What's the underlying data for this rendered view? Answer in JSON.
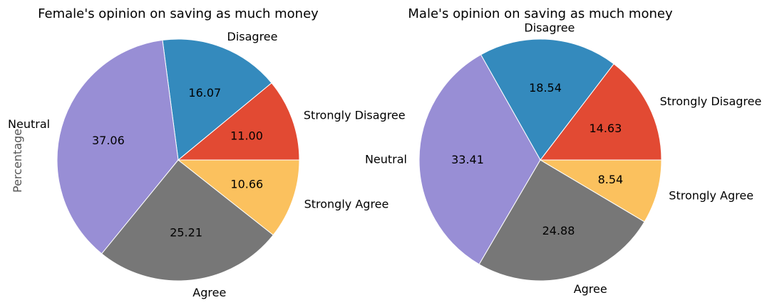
{
  "chart_data": [
    {
      "type": "pie",
      "title": "Female's opinion on saving as much money",
      "ylabel": "Percentage",
      "slices": [
        {
          "label": "Strongly Disagree",
          "value": 11.0,
          "display": "11.00",
          "color": "#e24a33"
        },
        {
          "label": "Disagree",
          "value": 16.07,
          "display": "16.07",
          "color": "#348abd"
        },
        {
          "label": "Neutral",
          "value": 37.06,
          "display": "37.06",
          "color": "#988ed5"
        },
        {
          "label": "Agree",
          "value": 25.21,
          "display": "25.21",
          "color": "#777777"
        },
        {
          "label": "Strongly Agree",
          "value": 10.66,
          "display": "10.66",
          "color": "#fbc15e"
        }
      ]
    },
    {
      "type": "pie",
      "title": "Male's opinion on saving as much money",
      "ylabel": "",
      "slices": [
        {
          "label": "Strongly Disagree",
          "value": 14.63,
          "display": "14.63",
          "color": "#e24a33"
        },
        {
          "label": "Disagree",
          "value": 18.54,
          "display": "18.54",
          "color": "#348abd"
        },
        {
          "label": "Neutral",
          "value": 33.41,
          "display": "33.41",
          "color": "#988ed5"
        },
        {
          "label": "Agree",
          "value": 24.88,
          "display": "24.88",
          "color": "#777777"
        },
        {
          "label": "Strongly Agree",
          "value": 8.54,
          "display": "8.54",
          "color": "#fbc15e"
        }
      ]
    }
  ]
}
